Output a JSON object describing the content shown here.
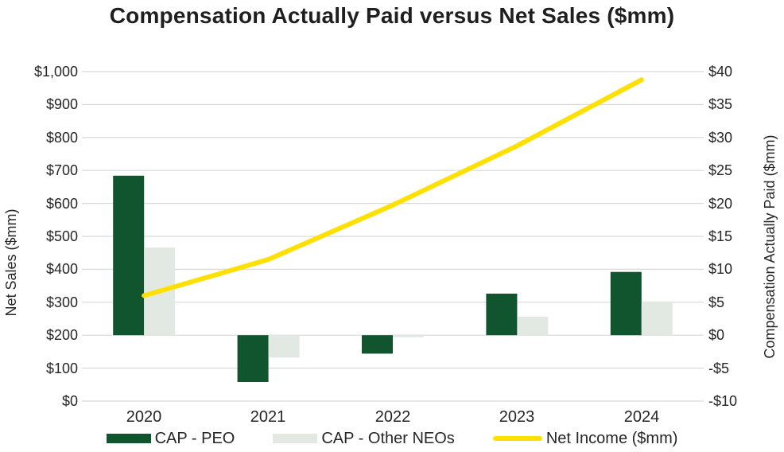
{
  "title": "Compensation Actually Paid versus Net Sales ($mm)",
  "colors": {
    "cap_peo": "#11552E",
    "cap_other_neos": "#E2E9E3",
    "net_income_line": "#FFE000",
    "gridline": "#D9D9D9",
    "text": "#262626",
    "background": "#FFFFFF"
  },
  "chart_data": {
    "type": "bar+line combo",
    "title": "Compensation Actually Paid versus Net Sales ($mm)",
    "categories": [
      "2020",
      "2021",
      "2022",
      "2023",
      "2024"
    ],
    "series": [
      {
        "name": "CAP - PEO",
        "type": "bar",
        "axis": "right",
        "color": "#11552E",
        "values": [
          24.2,
          -7.1,
          -2.8,
          6.3,
          9.6
        ]
      },
      {
        "name": "CAP - Other NEOs",
        "type": "bar",
        "axis": "right",
        "color": "#E2E9E3",
        "values": [
          13.3,
          -3.4,
          -0.3,
          2.8,
          5.0
        ]
      },
      {
        "name": "Net Income ($mm)",
        "type": "line",
        "axis": "left",
        "color": "#FFE000",
        "values": [
          320,
          430,
          595,
          775,
          975
        ]
      }
    ],
    "axes": {
      "left": {
        "title": "Net Sales ($mm)",
        "min": 0,
        "max": 1000,
        "step": 100,
        "ticks": [
          "$1,000",
          "$900",
          "$800",
          "$700",
          "$600",
          "$500",
          "$400",
          "$300",
          "$200",
          "$100",
          "$0"
        ]
      },
      "right": {
        "title": "Compensation Actually Paid ($mm)",
        "min": -10,
        "max": 40,
        "step": 5,
        "ticks": [
          "$40",
          "$35",
          "$30",
          "$25",
          "$20",
          "$15",
          "$10",
          "$5",
          "$0",
          "-$5",
          "-$10"
        ]
      }
    },
    "grid": true,
    "gridline_color": "#D9D9D9",
    "legend_position": "bottom",
    "bar_baseline_right_axis": 0,
    "note_left_axis_equivalent_of_line": [
      320,
      430,
      595,
      775,
      975
    ]
  }
}
